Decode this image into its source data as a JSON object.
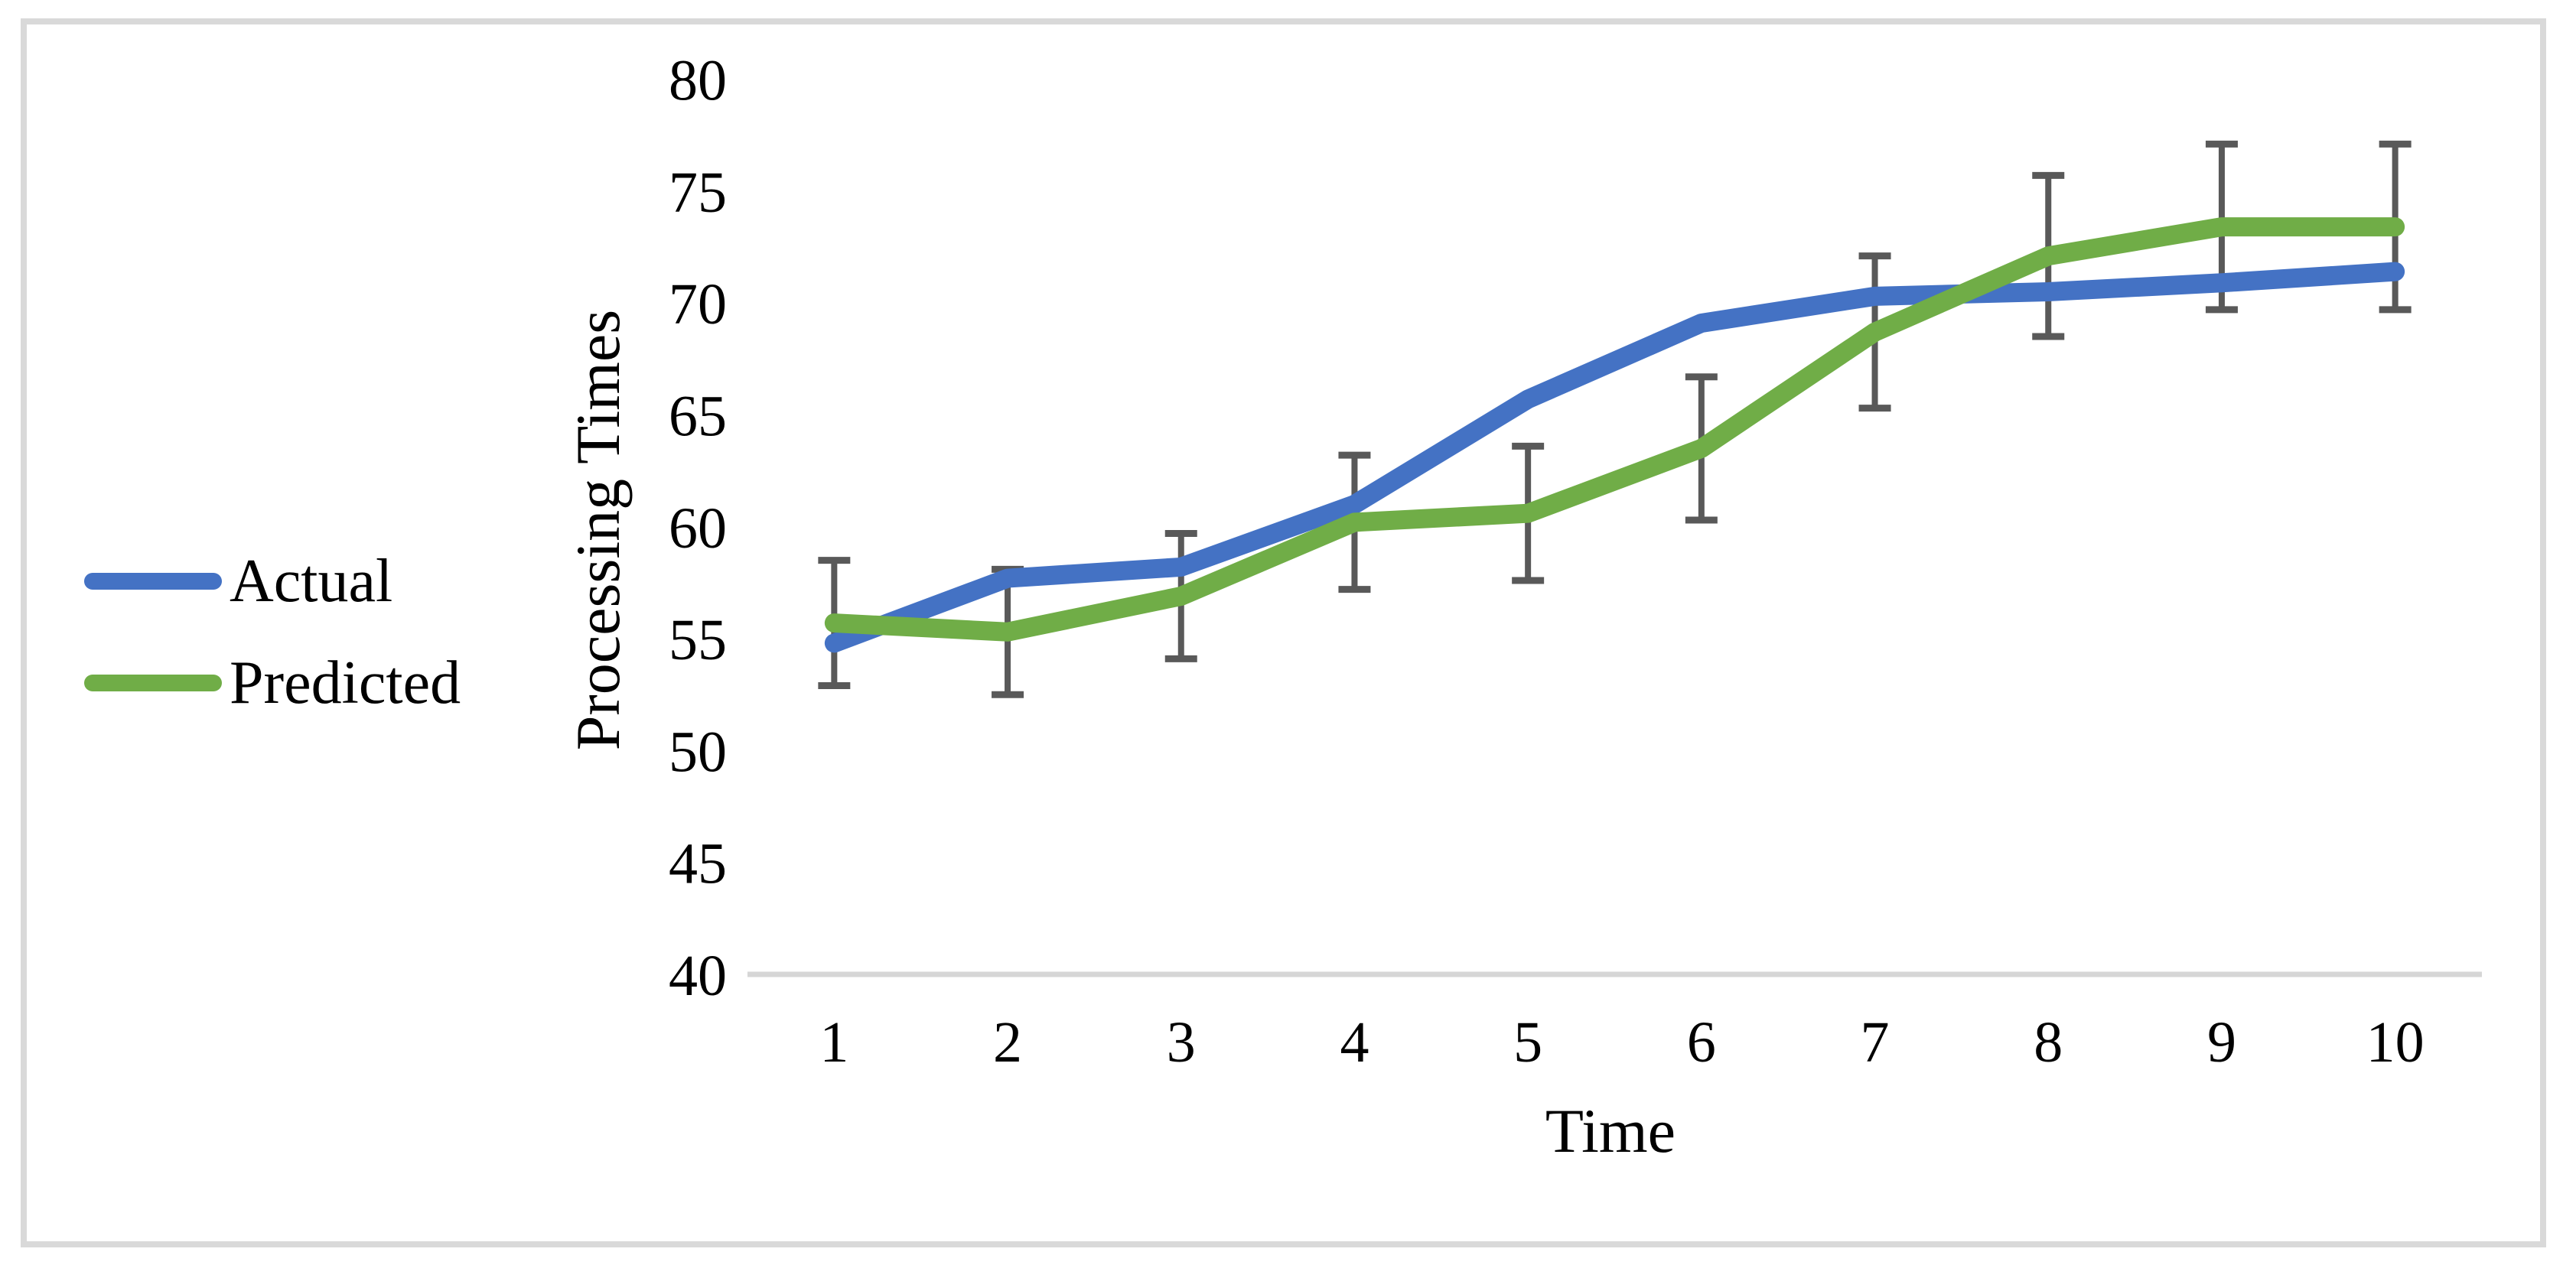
{
  "chart_data": {
    "type": "line",
    "title": "",
    "xlabel": "Time",
    "ylabel": "Processing Times",
    "x": [
      "1",
      "2",
      "3",
      "4",
      "5",
      "6",
      "7",
      "8",
      "9",
      "10"
    ],
    "y_ticks": [
      40,
      45,
      50,
      55,
      60,
      65,
      70,
      75,
      80
    ],
    "ylim": [
      40,
      80
    ],
    "grid": false,
    "legend_position": "middle-left",
    "series": [
      {
        "name": "Actual",
        "color": "#4472C4",
        "values": [
          54.8,
          57.7,
          58.2,
          61.0,
          65.7,
          69.1,
          70.3,
          70.5,
          70.9,
          71.4
        ]
      },
      {
        "name": "Predicted",
        "color": "#70AD47",
        "values": [
          55.7,
          55.3,
          56.9,
          60.2,
          60.6,
          63.5,
          68.7,
          72.1,
          73.4,
          73.4
        ],
        "error_bars": [
          2.8,
          2.8,
          2.8,
          3.0,
          3.0,
          3.2,
          3.4,
          3.6,
          3.7,
          3.7
        ],
        "error_bar_color": "#595959"
      }
    ],
    "axis_line_color": "#D6D6D6",
    "text_color": "#000000",
    "frame_border_color": "#D9D9D9"
  }
}
